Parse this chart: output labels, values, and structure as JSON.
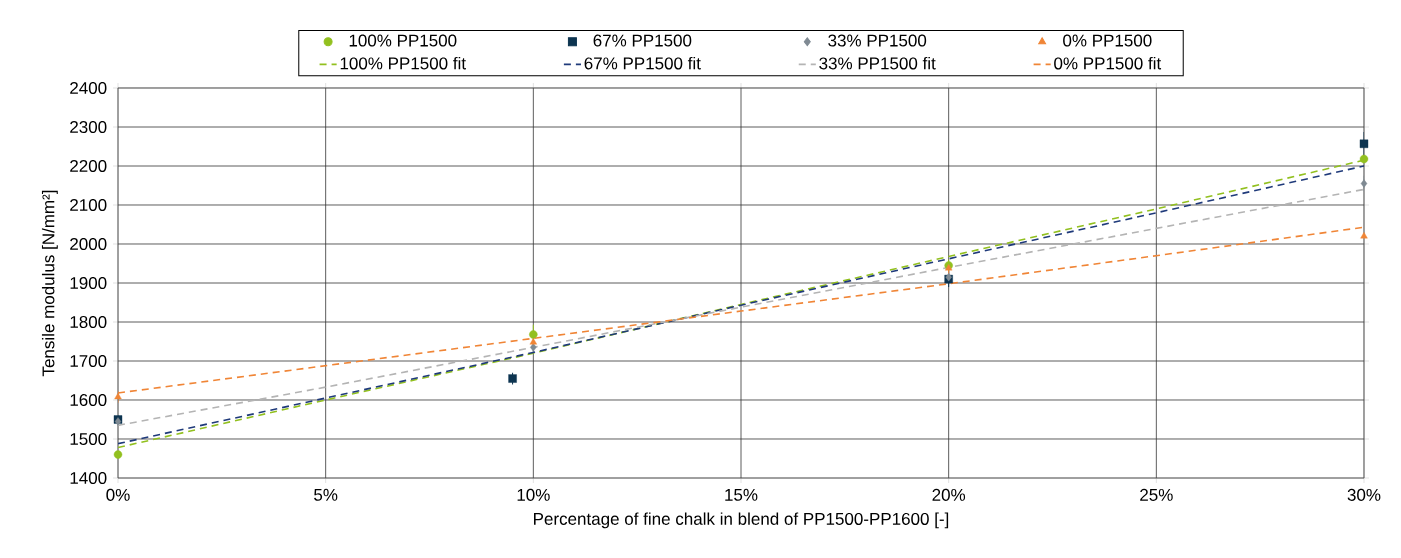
{
  "chart_data": {
    "type": "scatter",
    "xlabel": "Percentage of fine chalk in blend of PP1500-PP1600   [-]",
    "ylabel": "Tensile modulus   [N/mm²]",
    "xlim": [
      0,
      30
    ],
    "ylim": [
      1400,
      2400
    ],
    "xticks": [
      {
        "value": 0,
        "label": "0%"
      },
      {
        "value": 5,
        "label": "5%"
      },
      {
        "value": 10,
        "label": "10%"
      },
      {
        "value": 15,
        "label": "15%"
      },
      {
        "value": 20,
        "label": "20%"
      },
      {
        "value": 25,
        "label": "25%"
      },
      {
        "value": 30,
        "label": "30%"
      }
    ],
    "yticks": [
      1400,
      1500,
      1600,
      1700,
      1800,
      1900,
      2000,
      2100,
      2200,
      2300,
      2400
    ],
    "grid": true,
    "legend": "top",
    "series": [
      {
        "name": "100% PP1500",
        "marker": "circle",
        "color": "#92c01f",
        "x": [
          0,
          10,
          20,
          30
        ],
        "values": [
          1460,
          1768,
          1945,
          2218
        ],
        "errors": [
          10,
          25,
          15,
          null
        ]
      },
      {
        "name": "67% PP1500",
        "marker": "square",
        "color": "#0d3450",
        "x": [
          0,
          9.5,
          20,
          30
        ],
        "values": [
          1550,
          1655,
          1910,
          2257
        ],
        "errors": [
          10,
          15,
          20,
          30
        ]
      },
      {
        "name": "33% PP1500",
        "marker": "diamond",
        "color": "#7f8a93",
        "x": [
          0,
          10,
          20,
          30
        ],
        "values": [
          1545,
          1735,
          1915,
          2155
        ],
        "errors": [
          10,
          15,
          15,
          20
        ]
      },
      {
        "name": "0% PP1500",
        "marker": "triangle",
        "color": "#f08536",
        "x": [
          0,
          10,
          20,
          30
        ],
        "values": [
          1608,
          1748,
          1938,
          2020
        ],
        "errors": [
          15,
          null,
          15,
          null
        ]
      },
      {
        "name": "100% PP1500 fit",
        "type": "line",
        "marker": "none",
        "line_style": "dashed",
        "color": "#92c01f",
        "x": [
          0,
          5,
          10,
          15,
          20,
          25,
          30
        ],
        "values": [
          1478,
          1600,
          1720,
          1845,
          1968,
          2090,
          2215
        ]
      },
      {
        "name": "67% PP1500 fit",
        "type": "line",
        "marker": "none",
        "line_style": "dashed",
        "color": "#1f3a7a",
        "x": [
          0,
          5,
          10,
          15,
          20,
          25,
          30
        ],
        "values": [
          1488,
          1605,
          1722,
          1843,
          1962,
          2080,
          2200
        ]
      },
      {
        "name": "33% PP1500 fit",
        "type": "line",
        "marker": "none",
        "line_style": "dashed",
        "color": "#b4b4b4",
        "x": [
          0,
          5,
          10,
          15,
          20,
          25,
          30
        ],
        "values": [
          1535,
          1633,
          1735,
          1838,
          1940,
          2040,
          2140
        ]
      },
      {
        "name": "0% PP1500 fit",
        "type": "line",
        "marker": "none",
        "line_style": "dashed",
        "color": "#f08536",
        "x": [
          0,
          5,
          10,
          15,
          20,
          25,
          30
        ],
        "values": [
          1618,
          1688,
          1758,
          1828,
          1898,
          1970,
          2043
        ]
      }
    ]
  }
}
